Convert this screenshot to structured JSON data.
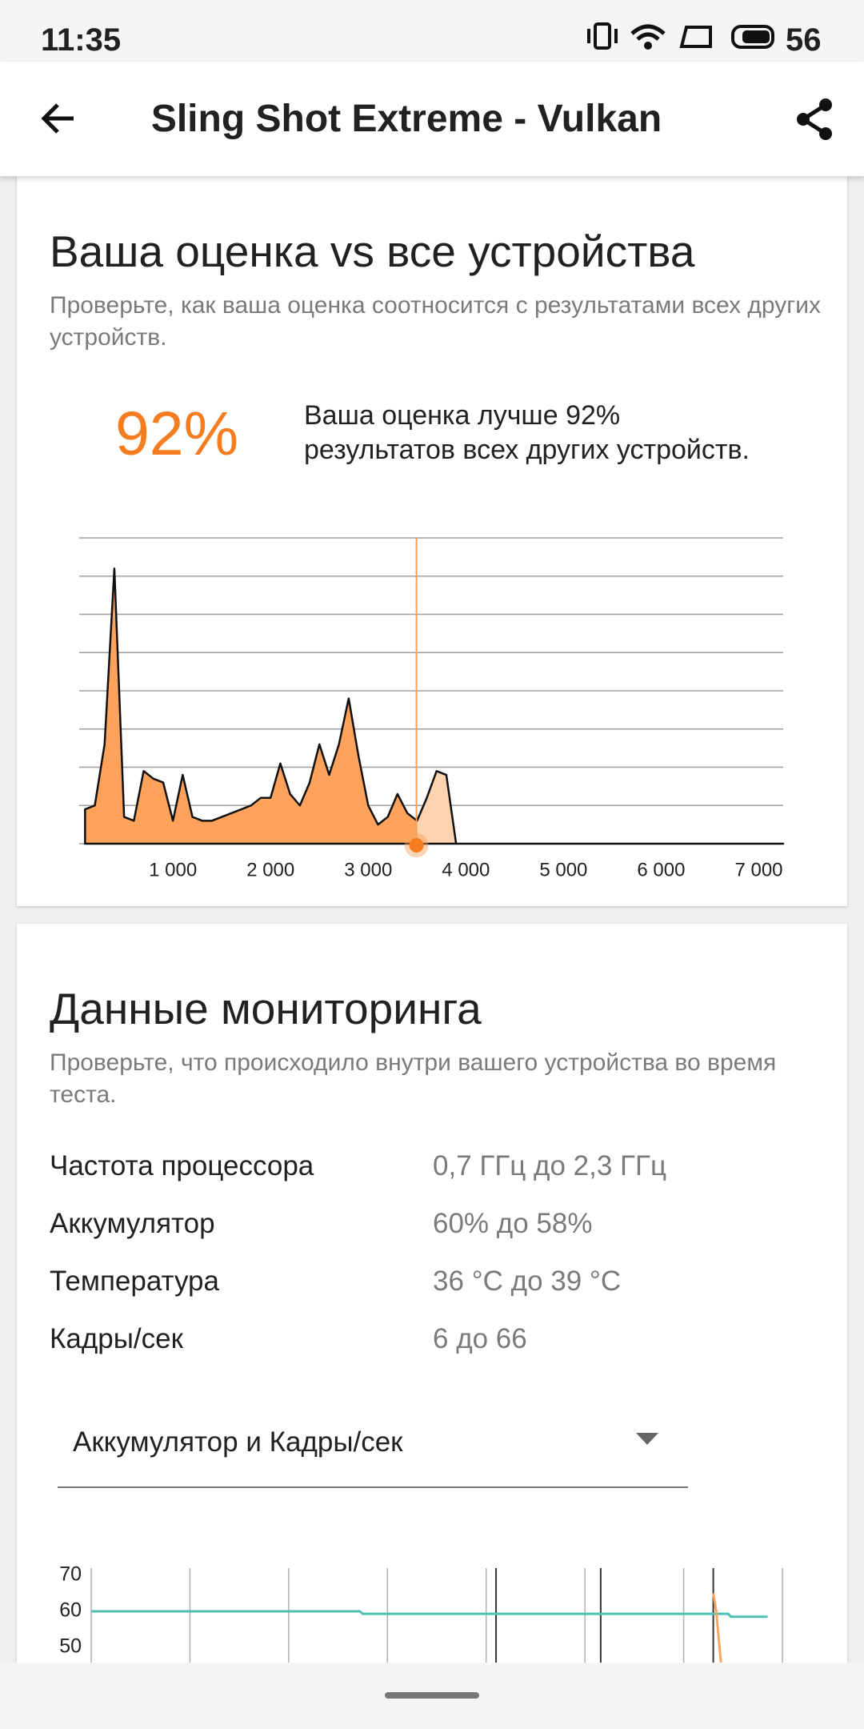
{
  "status_bar": {
    "time": "11:35",
    "battery": "56"
  },
  "app_bar": {
    "title": "Sling Shot Extreme - Vulkan"
  },
  "score_card": {
    "title": "Ваша оценка vs все устройства",
    "subtitle": "Проверьте, как ваша оценка соотносится с результатами всех других устройств.",
    "percent": "92%",
    "description_line1": "Ваша оценка лучше 92%",
    "description_line2": "результатов всех других устройств."
  },
  "monitoring_card": {
    "title": "Данные мониторинга",
    "subtitle": "Проверьте, что происходило внутри вашего устройства во время теста.",
    "rows": [
      [
        "Частота процессора",
        "0,7 ГГц до 2,3 ГГц"
      ],
      [
        "Аккумулятор",
        "60% до 58%"
      ],
      [
        "Температура",
        "36 °C до 39 °C"
      ],
      [
        "Кадры/сек",
        "6 до 66"
      ]
    ],
    "dropdown": "Аккумулятор и Кадры/сек"
  },
  "chart_data": [
    {
      "type": "area",
      "x": [
        100,
        200,
        300,
        400,
        500,
        600,
        700,
        800,
        900,
        1000,
        1100,
        1200,
        1300,
        1400,
        1500,
        1600,
        1700,
        1800,
        1900,
        2000,
        2100,
        2200,
        2300,
        2400,
        2500,
        2600,
        2700,
        2800,
        2900,
        3000,
        3100,
        3200,
        3300,
        3400,
        3500,
        3600,
        3700,
        3800,
        3900,
        4000,
        7250
      ],
      "values": [
        0.9,
        1.0,
        2.6,
        7.2,
        0.7,
        0.6,
        1.9,
        1.7,
        1.6,
        0.6,
        1.8,
        0.7,
        0.6,
        0.6,
        0.7,
        0.8,
        0.9,
        1.0,
        1.2,
        1.2,
        2.1,
        1.3,
        1.0,
        1.6,
        2.6,
        1.8,
        2.6,
        3.8,
        2.3,
        1.0,
        0.5,
        0.7,
        1.3,
        0.8,
        0.6,
        1.2,
        1.9,
        1.8,
        0,
        0,
        0
      ],
      "score": 3494,
      "color": "#ffa35c",
      "color_above_score": "#fdd3b0",
      "score_color": "#f5a15c",
      "xlim": [
        40,
        7250
      ],
      "ylim": [
        0,
        8
      ],
      "xticks": [
        {
          "value": 1000,
          "label": "1 000"
        },
        {
          "value": 2000,
          "label": "2 000"
        },
        {
          "value": 3000,
          "label": "3 000"
        },
        {
          "value": 4000,
          "label": "4 000"
        },
        {
          "value": 5000,
          "label": "5 000"
        },
        {
          "value": 6000,
          "label": "6 000"
        },
        {
          "value": 7000,
          "label": "7 000"
        }
      ],
      "yticks": [
        0,
        1,
        2,
        3,
        4,
        5,
        6,
        7,
        8
      ],
      "grid": true
    },
    {
      "type": "line",
      "xlim": [
        0,
        7
      ],
      "xticks": [
        0,
        1,
        2,
        3,
        4,
        5,
        6,
        7
      ],
      "ylim": [
        45,
        72
      ],
      "yticks": [
        70,
        60,
        50
      ],
      "grid": true,
      "events": [
        4.1,
        5.16,
        6.3
      ],
      "series": [
        {
          "color": "#4dbfb3",
          "x": [
            0,
            2.72,
            2.75,
            6.45,
            6.48,
            6.85
          ],
          "values": [
            60,
            60,
            59.3,
            59.3,
            58.5,
            58.5
          ]
        },
        {
          "color": "#f7a55e",
          "x": [
            6.3,
            6.33,
            6.38
          ],
          "values": [
            65,
            60,
            45
          ]
        }
      ]
    }
  ]
}
